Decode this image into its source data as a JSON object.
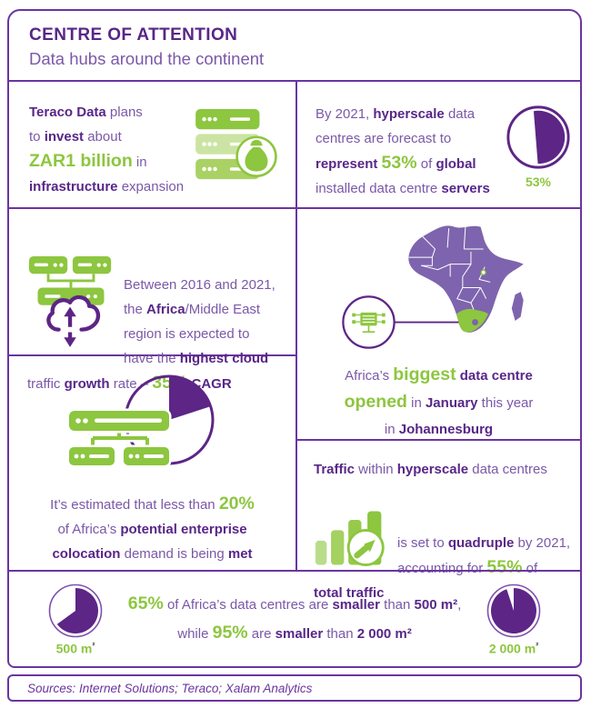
{
  "header": {
    "title": "CENTRE OF ATTENTION",
    "subtitle": "Data hubs around the continent"
  },
  "colors": {
    "purple_dark": "#582688",
    "purple_regular": "#7b58a8",
    "purple_border": "#6a35a0",
    "purple_map": "#7e64ae",
    "green": "#8dc63f"
  },
  "icons": {
    "teraco": "server-stack-money-bag-icon",
    "cloud": "cloud-transfer-servers-icon",
    "hyperscale_pie": "pie-chart-53-icon",
    "map": "africa-map",
    "map_marker": "data-centre-circle-icon",
    "colocation": "servers-pie-chart-icon",
    "traffic": "growth-bars-arrow-icon",
    "size_small_pie": "pie-chart-65-icon",
    "size_large_pie": "pie-chart-95-icon"
  },
  "cells": {
    "teraco": {
      "segments": [
        {
          "t": "Teraco Data",
          "s": "b"
        },
        {
          "t": " plans\nto ",
          "s": "r"
        },
        {
          "t": "invest",
          "s": "b"
        },
        {
          "t": " about\n",
          "s": "r"
        },
        {
          "t": "ZAR1 billion",
          "s": "g"
        },
        {
          "t": " in\n",
          "s": "r"
        },
        {
          "t": "infrastructure",
          "s": "b"
        },
        {
          "t": " expansion",
          "s": "r"
        }
      ]
    },
    "hyperscale": {
      "segments": [
        {
          "t": "By 2021, ",
          "s": "r"
        },
        {
          "t": "hyperscale",
          "s": "b"
        },
        {
          "t": " data\ncentres are forecast to\n",
          "s": "r"
        },
        {
          "t": "represent",
          "s": "b"
        },
        {
          "t": " ",
          "s": "r"
        },
        {
          "t": "53%",
          "s": "g"
        },
        {
          "t": " of ",
          "s": "r"
        },
        {
          "t": "global",
          "s": "b"
        },
        {
          "t": "\ninstalled data centre ",
          "s": "r"
        },
        {
          "t": "servers",
          "s": "b"
        }
      ]
    },
    "cloud": {
      "segments": [
        {
          "t": "Between 2016 and 2021,\nthe ",
          "s": "r"
        },
        {
          "t": "Africa",
          "s": "b"
        },
        {
          "t": "/Middle East\nregion is expected to\nhave the ",
          "s": "r"
        },
        {
          "t": "highest cloud",
          "s": "b"
        },
        {
          "t": "\ntraffic ",
          "s": "r"
        },
        {
          "t": "growth",
          "s": "b"
        },
        {
          "t": " rate – ",
          "s": "r"
        },
        {
          "t": "35%",
          "s": "g"
        },
        {
          "t": " ",
          "s": "r"
        },
        {
          "t": "CAGR",
          "s": "b"
        }
      ]
    },
    "map": {
      "segments": [
        {
          "t": "Africa’s ",
          "s": "r"
        },
        {
          "t": "biggest",
          "s": "g"
        },
        {
          "t": " ",
          "s": "r"
        },
        {
          "t": "data centre",
          "s": "b"
        },
        {
          "t": "\n",
          "s": "r"
        },
        {
          "t": "opened",
          "s": "g"
        },
        {
          "t": " in ",
          "s": "r"
        },
        {
          "t": "January",
          "s": "b"
        },
        {
          "t": " this year\nin ",
          "s": "r"
        },
        {
          "t": "Johannesburg",
          "s": "b"
        }
      ]
    },
    "colocation": {
      "segments": [
        {
          "t": "It’s estimated that less than ",
          "s": "r"
        },
        {
          "t": "20%",
          "s": "g"
        },
        {
          "t": "\nof Africa’s ",
          "s": "r"
        },
        {
          "t": "potential enterprise",
          "s": "b"
        },
        {
          "t": "\n",
          "s": "r"
        },
        {
          "t": "colocation",
          "s": "b"
        },
        {
          "t": " demand is being ",
          "s": "r"
        },
        {
          "t": "met",
          "s": "b"
        }
      ]
    },
    "traffic": {
      "line1_segments": [
        {
          "t": "Traffic",
          "s": "b"
        },
        {
          "t": " within ",
          "s": "r"
        },
        {
          "t": "hyperscale",
          "s": "b"
        },
        {
          "t": " data centres",
          "s": "r"
        }
      ],
      "rest_segments": [
        {
          "t": "is set to ",
          "s": "r"
        },
        {
          "t": "quadruple",
          "s": "b"
        },
        {
          "t": " by 2021,\naccounting for ",
          "s": "r"
        },
        {
          "t": "55%",
          "s": "g"
        },
        {
          "t": " of\n",
          "s": "r"
        },
        {
          "t": "total traffic",
          "s": "b"
        }
      ]
    },
    "size": {
      "segments": [
        {
          "t": "65%",
          "s": "g"
        },
        {
          "t": " of Africa’s data centres are ",
          "s": "r"
        },
        {
          "t": "smaller",
          "s": "b"
        },
        {
          "t": " than ",
          "s": "r"
        },
        {
          "t": "500 m²",
          "s": "b"
        },
        {
          "t": ",\nwhile ",
          "s": "r"
        },
        {
          "t": "95%",
          "s": "g"
        },
        {
          "t": " are ",
          "s": "r"
        },
        {
          "t": "smaller",
          "s": "b"
        },
        {
          "t": " than ",
          "s": "r"
        },
        {
          "t": "2 000 m²",
          "s": "b"
        }
      ]
    }
  },
  "pies": {
    "hyperscale": {
      "percent": 53,
      "label": "53%"
    },
    "colocation": {
      "percent": 20
    },
    "size_small": {
      "percent": 65,
      "label": "500 m",
      "sup": "²"
    },
    "size_large": {
      "percent": 95,
      "label": "2 000 m",
      "sup": "²"
    }
  },
  "footer": {
    "text": "Sources: Internet Solutions; Teraco; Xalam Analytics"
  }
}
